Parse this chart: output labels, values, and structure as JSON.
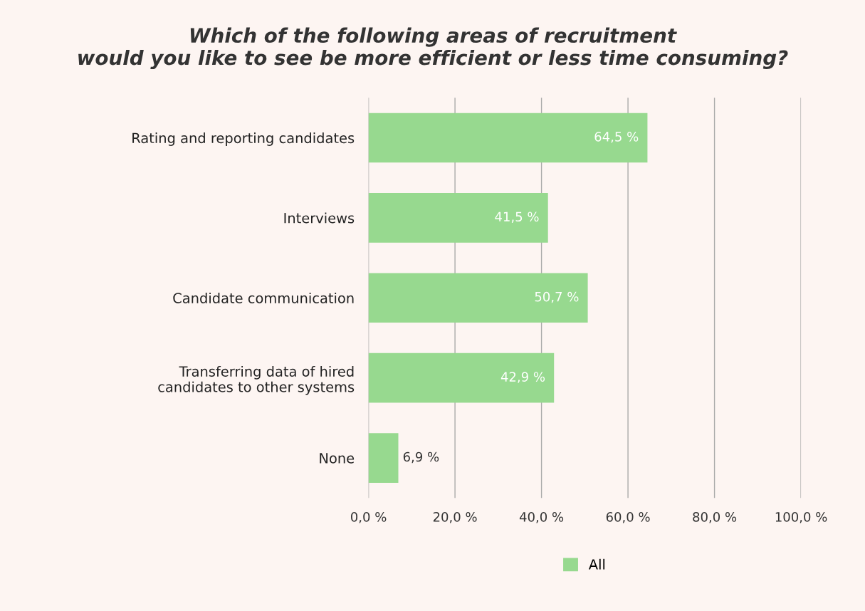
{
  "chart_data": {
    "type": "bar",
    "orientation": "horizontal",
    "title": "Which of the following areas of recruitment\nwould you like to see be more efficient or less time consuming?",
    "categories": [
      "Rating and reporting candidates",
      "Interviews",
      "Candidate communication",
      "Transferring data of hired\ncandidates to other systems",
      "None"
    ],
    "series": [
      {
        "name": "All",
        "color": "#97d98f",
        "values": [
          64.5,
          41.5,
          50.7,
          42.9,
          6.9
        ],
        "value_labels": [
          "64,5 %",
          "41,5 %",
          "50,7 %",
          "42,9 %",
          "6,9 %"
        ]
      }
    ],
    "xlim": [
      0,
      100
    ],
    "xticks": [
      {
        "value": 0,
        "label": "0,0 %"
      },
      {
        "value": 20,
        "label": "20,0 %"
      },
      {
        "value": 40,
        "label": "40,0 %"
      },
      {
        "value": 60,
        "label": "60,0 %"
      },
      {
        "value": 80,
        "label": "80,0 %"
      },
      {
        "value": 100,
        "label": "100,0 %"
      }
    ],
    "grid": "x",
    "legend": "bottom"
  }
}
